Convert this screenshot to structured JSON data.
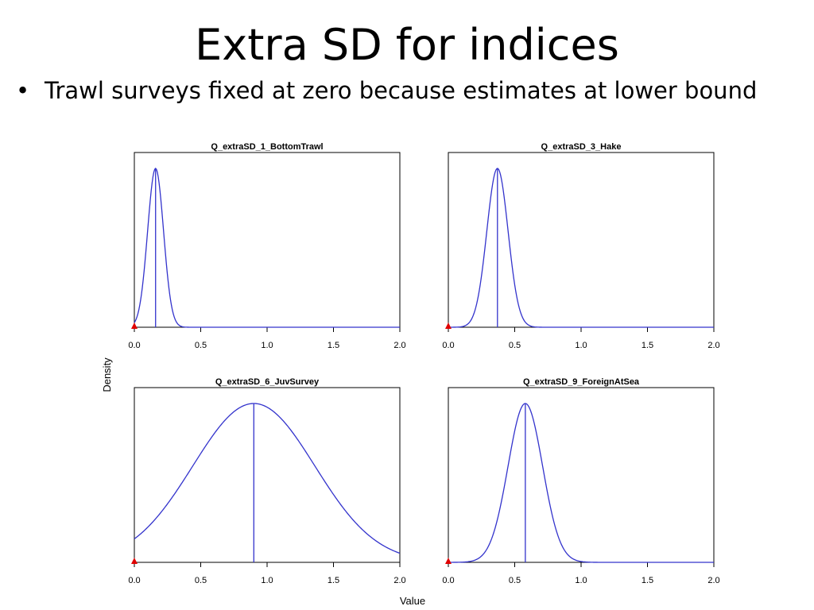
{
  "slide": {
    "title": "Extra SD for indices",
    "bullet_symbol": "•",
    "bullet": "Trawl surveys fixed at zero because estimates at lower bound"
  },
  "chart_data": [
    {
      "type": "line",
      "title": "Q_extraSD_1_BottomTrawl",
      "xlim": [
        0,
        2
      ],
      "xticks": [
        "0.0",
        "0.5",
        "1.0",
        "1.5",
        "2.0"
      ],
      "density": {
        "mean": 0.16,
        "sd": 0.06
      },
      "vline": 0.16,
      "marker_x": 0.0,
      "line_color": "#3333cc",
      "marker_color": "#e00000"
    },
    {
      "type": "line",
      "title": "Q_extraSD_3_Hake",
      "xlim": [
        0,
        2
      ],
      "xticks": [
        "0.0",
        "0.5",
        "1.0",
        "1.5",
        "2.0"
      ],
      "density": {
        "mean": 0.37,
        "sd": 0.08
      },
      "vline": 0.37,
      "marker_x": 0.0,
      "line_color": "#3333cc",
      "marker_color": "#e00000"
    },
    {
      "type": "line",
      "title": "Q_extraSD_6_JuvSurvey",
      "xlim": [
        0,
        2
      ],
      "xticks": [
        "0.0",
        "0.5",
        "1.0",
        "1.5",
        "2.0"
      ],
      "density": {
        "mean": 0.9,
        "sd": 0.46
      },
      "vline": 0.9,
      "marker_x": 0.0,
      "line_color": "#3333cc",
      "marker_color": "#e00000"
    },
    {
      "type": "line",
      "title": "Q_extraSD_9_ForeignAtSea",
      "xlim": [
        0,
        2
      ],
      "xticks": [
        "0.0",
        "0.5",
        "1.0",
        "1.5",
        "2.0"
      ],
      "density": {
        "mean": 0.58,
        "sd": 0.13
      },
      "vline": 0.58,
      "marker_x": 0.0,
      "line_color": "#3333cc",
      "marker_color": "#e00000"
    }
  ],
  "shared_axes": {
    "xlabel": "Value",
    "ylabel": "Density"
  }
}
